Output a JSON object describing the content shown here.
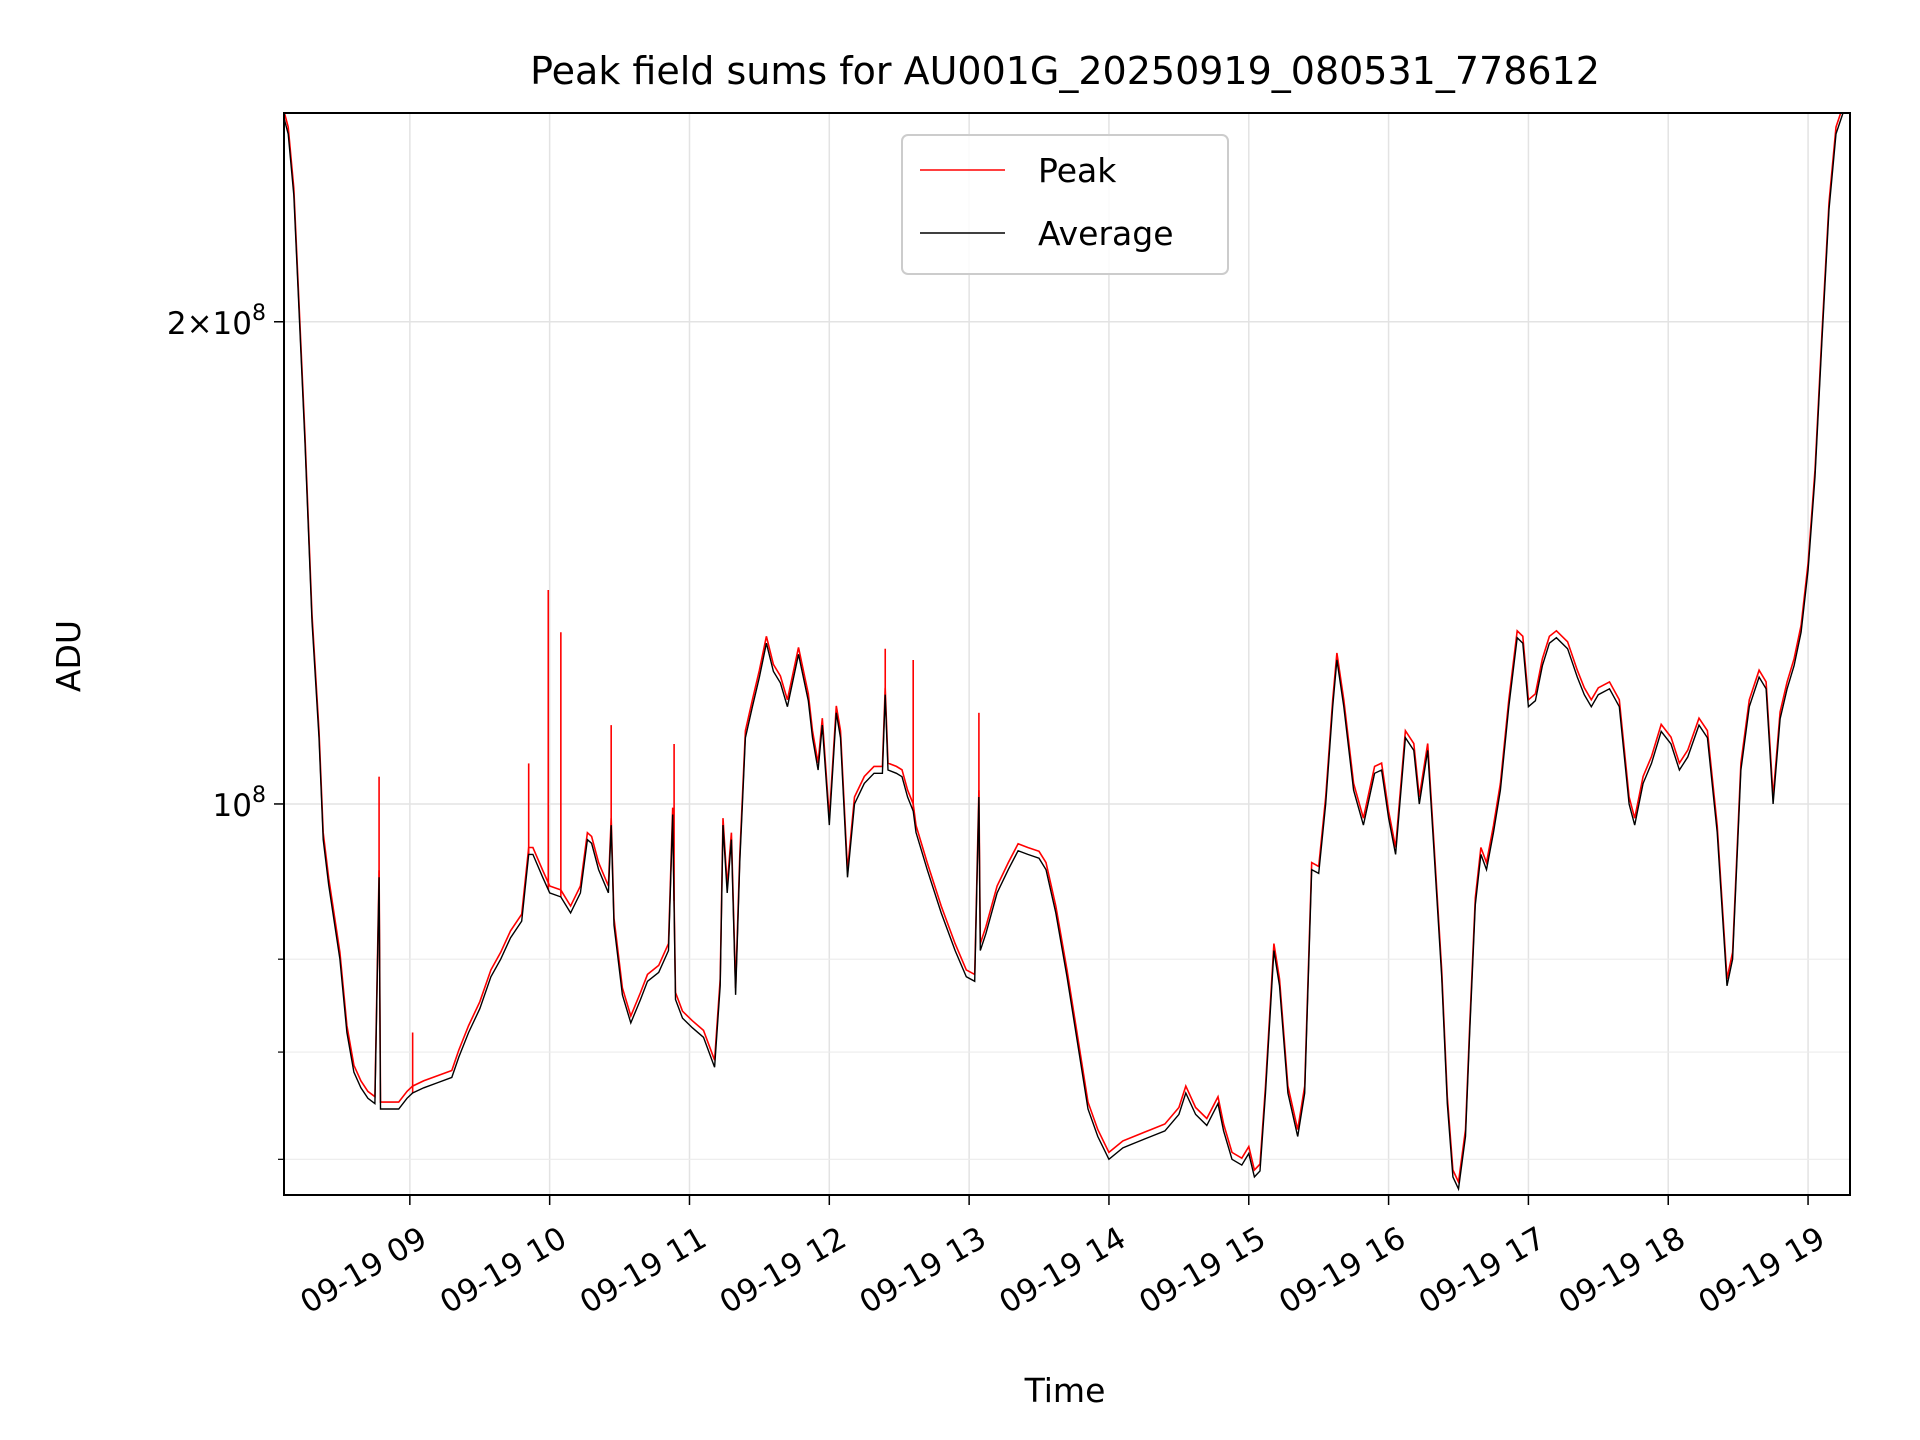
{
  "chart_data": {
    "type": "line",
    "title": "Peak field sums for AU001G_20250919_080531_778612",
    "xlabel": "Time",
    "ylabel": "ADU",
    "yscale": "log",
    "ylim": [
      57000000,
      270000000
    ],
    "xlim": [
      8.1,
      19.3
    ],
    "grid": true,
    "legend_position": "top-center",
    "x_ticks": [
      {
        "value": 9,
        "label": "09-19 09"
      },
      {
        "value": 10,
        "label": "09-19 10"
      },
      {
        "value": 11,
        "label": "09-19 11"
      },
      {
        "value": 12,
        "label": "09-19 12"
      },
      {
        "value": 13,
        "label": "09-19 13"
      },
      {
        "value": 14,
        "label": "09-19 14"
      },
      {
        "value": 15,
        "label": "09-19 15"
      },
      {
        "value": 16,
        "label": "09-19 16"
      },
      {
        "value": 17,
        "label": "09-19 17"
      },
      {
        "value": 18,
        "label": "09-19 18"
      },
      {
        "value": 19,
        "label": "09-19 19"
      }
    ],
    "y_major_ticks": [
      {
        "value": 100000000,
        "base": "10",
        "exp": "8",
        "mantissa": ""
      },
      {
        "value": 200000000,
        "base": "10",
        "exp": "8",
        "mantissa": "2×"
      }
    ],
    "y_minor_ticks": [
      60000000,
      70000000,
      80000000
    ],
    "series": [
      {
        "name": "Peak",
        "color": "#ff0000",
        "offset": 1.01,
        "spikes": [
          {
            "x": 8.78,
            "y": 104000000
          },
          {
            "x": 9.02,
            "y": 72000000
          },
          {
            "x": 9.85,
            "y": 106000000
          },
          {
            "x": 9.99,
            "y": 136000000
          },
          {
            "x": 10.08,
            "y": 128000000
          },
          {
            "x": 10.44,
            "y": 112000000
          },
          {
            "x": 10.89,
            "y": 109000000
          },
          {
            "x": 12.4,
            "y": 125000000
          },
          {
            "x": 12.6,
            "y": 123000000
          },
          {
            "x": 13.07,
            "y": 114000000
          }
        ]
      },
      {
        "name": "Average",
        "color": "#000000",
        "points": [
          [
            8.1,
            268000000
          ],
          [
            8.13,
            262000000
          ],
          [
            8.17,
            240000000
          ],
          [
            8.2,
            210000000
          ],
          [
            8.25,
            168000000
          ],
          [
            8.3,
            130000000
          ],
          [
            8.35,
            110000000
          ],
          [
            8.38,
            95000000
          ],
          [
            8.42,
            89000000
          ],
          [
            8.5,
            80000000
          ],
          [
            8.55,
            72000000
          ],
          [
            8.6,
            68000000
          ],
          [
            8.65,
            66500000
          ],
          [
            8.7,
            65500000
          ],
          [
            8.75,
            65000000
          ],
          [
            8.78,
            90000000
          ],
          [
            8.79,
            64500000
          ],
          [
            8.85,
            64500000
          ],
          [
            8.92,
            64500000
          ],
          [
            8.98,
            65500000
          ],
          [
            9.02,
            66000000
          ],
          [
            9.1,
            66500000
          ],
          [
            9.2,
            67000000
          ],
          [
            9.3,
            67500000
          ],
          [
            9.35,
            69500000
          ],
          [
            9.42,
            72000000
          ],
          [
            9.5,
            74500000
          ],
          [
            9.58,
            78000000
          ],
          [
            9.65,
            80000000
          ],
          [
            9.72,
            82500000
          ],
          [
            9.8,
            84500000
          ],
          [
            9.85,
            93000000
          ],
          [
            9.88,
            93000000
          ],
          [
            9.95,
            90000000
          ],
          [
            10.0,
            88000000
          ],
          [
            10.08,
            87500000
          ],
          [
            10.15,
            85500000
          ],
          [
            10.22,
            88000000
          ],
          [
            10.27,
            95000000
          ],
          [
            10.3,
            94500000
          ],
          [
            10.35,
            91000000
          ],
          [
            10.42,
            88000000
          ],
          [
            10.44,
            97000000
          ],
          [
            10.46,
            84000000
          ],
          [
            10.52,
            76000000
          ],
          [
            10.58,
            73000000
          ],
          [
            10.65,
            75500000
          ],
          [
            10.7,
            77500000
          ],
          [
            10.78,
            78500000
          ],
          [
            10.85,
            81000000
          ],
          [
            10.88,
            98500000
          ],
          [
            10.9,
            75500000
          ],
          [
            10.95,
            73500000
          ],
          [
            11.02,
            72500000
          ],
          [
            11.1,
            71500000
          ],
          [
            11.18,
            68500000
          ],
          [
            11.22,
            77000000
          ],
          [
            11.24,
            97000000
          ],
          [
            11.27,
            88000000
          ],
          [
            11.3,
            95000000
          ],
          [
            11.33,
            76000000
          ],
          [
            11.36,
            92000000
          ],
          [
            11.4,
            110000000
          ],
          [
            11.45,
            115000000
          ],
          [
            11.5,
            120000000
          ],
          [
            11.55,
            126000000
          ],
          [
            11.6,
            121000000
          ],
          [
            11.65,
            119000000
          ],
          [
            11.7,
            115000000
          ],
          [
            11.78,
            124000000
          ],
          [
            11.85,
            116000000
          ],
          [
            11.88,
            110000000
          ],
          [
            11.92,
            105000000
          ],
          [
            11.95,
            112000000
          ],
          [
            12.0,
            97000000
          ],
          [
            12.05,
            114000000
          ],
          [
            12.08,
            110000000
          ],
          [
            12.13,
            90000000
          ],
          [
            12.18,
            100000000
          ],
          [
            12.25,
            103000000
          ],
          [
            12.32,
            104500000
          ],
          [
            12.38,
            104500000
          ],
          [
            12.4,
            117000000
          ],
          [
            12.42,
            105000000
          ],
          [
            12.48,
            104500000
          ],
          [
            12.52,
            104000000
          ],
          [
            12.56,
            101000000
          ],
          [
            12.6,
            99000000
          ],
          [
            12.62,
            96000000
          ],
          [
            12.7,
            91000000
          ],
          [
            12.8,
            85500000
          ],
          [
            12.9,
            81000000
          ],
          [
            12.98,
            78000000
          ],
          [
            13.04,
            77500000
          ],
          [
            13.07,
            101000000
          ],
          [
            13.08,
            81000000
          ],
          [
            13.12,
            83000000
          ],
          [
            13.2,
            88000000
          ],
          [
            13.28,
            91000000
          ],
          [
            13.35,
            93500000
          ],
          [
            13.42,
            93000000
          ],
          [
            13.5,
            92500000
          ],
          [
            13.55,
            91000000
          ],
          [
            13.62,
            85500000
          ],
          [
            13.7,
            78000000
          ],
          [
            13.78,
            70500000
          ],
          [
            13.85,
            64500000
          ],
          [
            13.92,
            62000000
          ],
          [
            14.0,
            60000000
          ],
          [
            14.1,
            61000000
          ],
          [
            14.2,
            61500000
          ],
          [
            14.3,
            62000000
          ],
          [
            14.4,
            62500000
          ],
          [
            14.5,
            64000000
          ],
          [
            14.55,
            66000000
          ],
          [
            14.62,
            64000000
          ],
          [
            14.7,
            63000000
          ],
          [
            14.78,
            65000000
          ],
          [
            14.82,
            62500000
          ],
          [
            14.88,
            60000000
          ],
          [
            14.95,
            59500000
          ],
          [
            15.0,
            60500000
          ],
          [
            15.04,
            58500000
          ],
          [
            15.08,
            59000000
          ],
          [
            15.12,
            66000000
          ],
          [
            15.18,
            81000000
          ],
          [
            15.22,
            77000000
          ],
          [
            15.28,
            66000000
          ],
          [
            15.35,
            62000000
          ],
          [
            15.4,
            66000000
          ],
          [
            15.45,
            91000000
          ],
          [
            15.5,
            90500000
          ],
          [
            15.55,
            100000000
          ],
          [
            15.6,
            115000000
          ],
          [
            15.63,
            123000000
          ],
          [
            15.68,
            115000000
          ],
          [
            15.75,
            102000000
          ],
          [
            15.82,
            97000000
          ],
          [
            15.9,
            104500000
          ],
          [
            15.95,
            105000000
          ],
          [
            16.0,
            98000000
          ],
          [
            16.05,
            93000000
          ],
          [
            16.12,
            110000000
          ],
          [
            16.18,
            108000000
          ],
          [
            16.22,
            100000000
          ],
          [
            16.28,
            108000000
          ],
          [
            16.32,
            95000000
          ],
          [
            16.38,
            78000000
          ],
          [
            16.42,
            65000000
          ],
          [
            16.46,
            58500000
          ],
          [
            16.5,
            57500000
          ],
          [
            16.55,
            62000000
          ],
          [
            16.58,
            72000000
          ],
          [
            16.62,
            86500000
          ],
          [
            16.66,
            93000000
          ],
          [
            16.7,
            91000000
          ],
          [
            16.75,
            96000000
          ],
          [
            16.8,
            102000000
          ],
          [
            16.86,
            115000000
          ],
          [
            16.92,
            127000000
          ],
          [
            16.96,
            126000000
          ],
          [
            17.0,
            115000000
          ],
          [
            17.05,
            116000000
          ],
          [
            17.1,
            122000000
          ],
          [
            17.15,
            126000000
          ],
          [
            17.2,
            127000000
          ],
          [
            17.28,
            125000000
          ],
          [
            17.35,
            120000000
          ],
          [
            17.4,
            117000000
          ],
          [
            17.45,
            115000000
          ],
          [
            17.5,
            117000000
          ],
          [
            17.58,
            118000000
          ],
          [
            17.65,
            115000000
          ],
          [
            17.72,
            100000000
          ],
          [
            17.76,
            97000000
          ],
          [
            17.82,
            103000000
          ],
          [
            17.88,
            106000000
          ],
          [
            17.95,
            111000000
          ],
          [
            18.02,
            109000000
          ],
          [
            18.08,
            105000000
          ],
          [
            18.14,
            107000000
          ],
          [
            18.22,
            112000000
          ],
          [
            18.28,
            110000000
          ],
          [
            18.35,
            96000000
          ],
          [
            18.42,
            77000000
          ],
          [
            18.46,
            80000000
          ],
          [
            18.52,
            105000000
          ],
          [
            18.58,
            115000000
          ],
          [
            18.65,
            120000000
          ],
          [
            18.7,
            118000000
          ],
          [
            18.75,
            100000000
          ],
          [
            18.8,
            113000000
          ],
          [
            18.85,
            118000000
          ],
          [
            18.9,
            122000000
          ],
          [
            18.95,
            128000000
          ],
          [
            19.0,
            140000000
          ],
          [
            19.05,
            160000000
          ],
          [
            19.1,
            195000000
          ],
          [
            19.15,
            235000000
          ],
          [
            19.2,
            262000000
          ],
          [
            19.25,
            270000000
          ],
          [
            19.3,
            272000000
          ]
        ]
      }
    ]
  }
}
